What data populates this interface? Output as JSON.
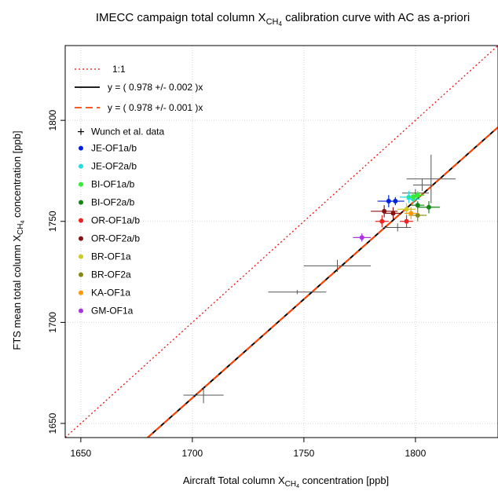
{
  "chart_data": {
    "type": "scatter",
    "title_pre": "IMECC campaign total column X",
    "title_sub": "CH",
    "title_subsub": "4",
    "title_post": " calibration curve with AC as a-priori",
    "xlabel_pre": "Aircraft Total column X",
    "xlabel_sub": "CH",
    "xlabel_subsub": "4",
    "xlabel_post": " concentration [ppb]",
    "ylabel_pre": "FTS mean total column X",
    "ylabel_sub": "CH",
    "ylabel_subsub": "4",
    "ylabel_post": " concentration [ppb]",
    "xlim": [
      1643,
      1837
    ],
    "ylim": [
      1643,
      1837
    ],
    "xticks": [
      1650,
      1700,
      1750,
      1800
    ],
    "yticks": [
      1650,
      1700,
      1750,
      1800
    ],
    "grid": true,
    "legend_position": "top-left",
    "lines": [
      {
        "name": "1:1",
        "slope": 1.0,
        "color": "#ee1111",
        "style": "dotted"
      },
      {
        "name": "y = ( 0.978 +/- 0.002 )x",
        "slope": 0.978,
        "color": "#000000",
        "style": "solid"
      },
      {
        "name": "y = ( 0.978 +/- 0.001 )x",
        "slope": 0.978,
        "color": "#ff4400",
        "style": "dashed"
      }
    ],
    "wunch": {
      "name": "Wunch et al. data",
      "color": "#555555",
      "points": [
        {
          "x": 1705,
          "y": 1664,
          "xerr": 9,
          "yerr": 4
        },
        {
          "x": 1747,
          "y": 1715,
          "xerr": 13,
          "yerr": 1
        },
        {
          "x": 1765,
          "y": 1728,
          "xerr": 15,
          "yerr": 3
        },
        {
          "x": 1792,
          "y": 1747,
          "xerr": 6,
          "yerr": 2
        },
        {
          "x": 1800,
          "y": 1764,
          "xerr": 6,
          "yerr": 2
        },
        {
          "x": 1807,
          "y": 1771,
          "xerr": 11,
          "yerr": 12
        },
        {
          "x": 1803,
          "y": 1768,
          "xerr": 4,
          "yerr": 3
        }
      ]
    },
    "series": [
      {
        "name": "JE-OF1a/b",
        "color": "#0022dd",
        "points": [
          {
            "x": 1788,
            "y": 1760,
            "xerr": 5,
            "yerr": 3
          },
          {
            "x": 1791,
            "y": 1760,
            "xerr": 4,
            "yerr": 2
          }
        ]
      },
      {
        "name": "JE-OF2a/b",
        "color": "#22dddd",
        "points": [
          {
            "x": 1797,
            "y": 1762,
            "xerr": 4,
            "yerr": 3
          },
          {
            "x": 1799,
            "y": 1761,
            "xerr": 3,
            "yerr": 2
          }
        ]
      },
      {
        "name": "BI-OF1a/b",
        "color": "#33ee33",
        "points": [
          {
            "x": 1799,
            "y": 1762,
            "xerr": 3,
            "yerr": 2
          },
          {
            "x": 1801,
            "y": 1763,
            "xerr": 3,
            "yerr": 2
          }
        ]
      },
      {
        "name": "BI-OF2a/b",
        "color": "#118811",
        "points": [
          {
            "x": 1806,
            "y": 1757,
            "xerr": 5,
            "yerr": 3
          },
          {
            "x": 1801,
            "y": 1758,
            "xerr": 3,
            "yerr": 2
          }
        ]
      },
      {
        "name": "OR-OF1a/b",
        "color": "#ee2222",
        "points": [
          {
            "x": 1785,
            "y": 1750,
            "xerr": 3,
            "yerr": 3
          },
          {
            "x": 1796,
            "y": 1750,
            "xerr": 3,
            "yerr": 3
          }
        ]
      },
      {
        "name": "OR-OF2a/b",
        "color": "#881111",
        "points": [
          {
            "x": 1786,
            "y": 1755,
            "xerr": 6,
            "yerr": 3
          },
          {
            "x": 1790,
            "y": 1754,
            "xerr": 4,
            "yerr": 3
          }
        ]
      },
      {
        "name": "BR-OF1a",
        "color": "#cccc22",
        "points": [
          {
            "x": 1796,
            "y": 1756,
            "xerr": 4,
            "yerr": 3
          }
        ]
      },
      {
        "name": "BR-OF2a",
        "color": "#888811",
        "points": [
          {
            "x": 1801,
            "y": 1753,
            "xerr": 4,
            "yerr": 3
          }
        ]
      },
      {
        "name": "KA-OF1a",
        "color": "#ff9900",
        "points": [
          {
            "x": 1798,
            "y": 1754,
            "xerr": 3,
            "yerr": 3
          }
        ]
      },
      {
        "name": "GM-OF1a",
        "color": "#aa33dd",
        "points": [
          {
            "x": 1776,
            "y": 1742,
            "xerr": 4,
            "yerr": 2
          }
        ]
      }
    ]
  }
}
